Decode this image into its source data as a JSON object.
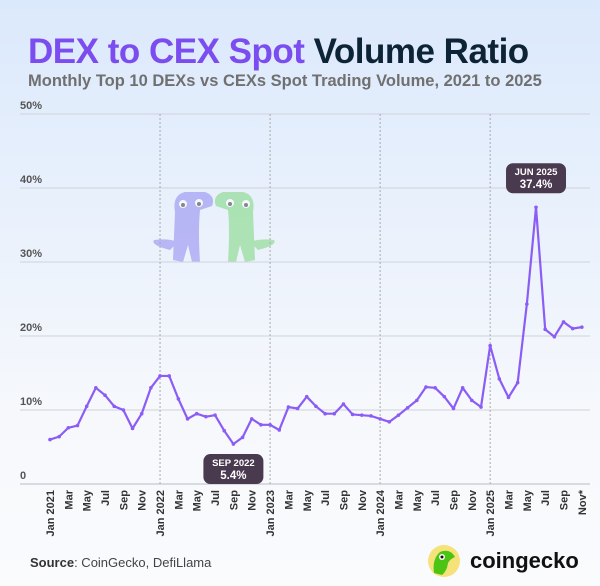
{
  "title_part1": "DEX to CEX Spot",
  "title_part2": "Volume Ratio",
  "subtitle": "Monthly Top 10 DEXs vs CEXs Spot Trading Volume, 2021 to 2025",
  "source_label": "Source",
  "source_text": ": CoinGecko, DefiLlama",
  "logo_text": "coingecko",
  "colors": {
    "line": "#8b5cf6",
    "accent": "#7b4df0",
    "tooltip": "#4a3a4f"
  },
  "chart_data": {
    "type": "line",
    "title": "DEX to CEX Spot Volume Ratio",
    "ylim": [
      0,
      50
    ],
    "yticks": [
      "0",
      "10%",
      "20%",
      "30%",
      "40%",
      "50%"
    ],
    "ytick_values": [
      0,
      10,
      20,
      30,
      40,
      50
    ],
    "grid": true,
    "xtick_labels": [
      "Jan 2021",
      "Mar",
      "May",
      "Jul",
      "Sep",
      "Nov",
      "Jan 2022",
      "Mar",
      "May",
      "Jul",
      "Sep",
      "Nov",
      "Jan 2023",
      "Mar",
      "May",
      "Jul",
      "Sep",
      "Nov",
      "Jan 2024",
      "Mar",
      "May",
      "Jul",
      "Sep",
      "Nov",
      "Jan 2025",
      "Mar",
      "May",
      "Jul",
      "Sep",
      "Nov*"
    ],
    "x": [
      "2021-01",
      "2021-02",
      "2021-03",
      "2021-04",
      "2021-05",
      "2021-06",
      "2021-07",
      "2021-08",
      "2021-09",
      "2021-10",
      "2021-11",
      "2021-12",
      "2022-01",
      "2022-02",
      "2022-03",
      "2022-04",
      "2022-05",
      "2022-06",
      "2022-07",
      "2022-08",
      "2022-09",
      "2022-10",
      "2022-11",
      "2022-12",
      "2023-01",
      "2023-02",
      "2023-03",
      "2023-04",
      "2023-05",
      "2023-06",
      "2023-07",
      "2023-08",
      "2023-09",
      "2023-10",
      "2023-11",
      "2023-12",
      "2024-01",
      "2024-02",
      "2024-03",
      "2024-04",
      "2024-05",
      "2024-06",
      "2024-07",
      "2024-08",
      "2024-09",
      "2024-10",
      "2024-11",
      "2024-12",
      "2025-01",
      "2025-02",
      "2025-03",
      "2025-04",
      "2025-05",
      "2025-06",
      "2025-07",
      "2025-08",
      "2025-09",
      "2025-10",
      "2025-11"
    ],
    "values": [
      6.0,
      6.4,
      7.6,
      7.9,
      10.5,
      13.0,
      12.0,
      10.5,
      10.0,
      7.5,
      9.5,
      13.0,
      14.6,
      14.6,
      11.5,
      8.8,
      9.5,
      9.1,
      9.3,
      7.2,
      5.4,
      6.3,
      8.8,
      8.0,
      8.0,
      7.3,
      10.4,
      10.2,
      11.8,
      10.5,
      9.5,
      9.5,
      10.8,
      9.4,
      9.3,
      9.2,
      8.8,
      8.4,
      9.3,
      10.3,
      11.3,
      13.1,
      13.0,
      11.8,
      10.2,
      13.0,
      11.3,
      10.4,
      18.7,
      14.2,
      11.7,
      13.7,
      24.3,
      37.4,
      20.9,
      19.9,
      21.9,
      21.0,
      21.2
    ],
    "annotations": [
      {
        "month": "2022-09",
        "label": "SEP 2022",
        "value_label": "5.4%"
      },
      {
        "month": "2025-06",
        "label": "JUN 2025",
        "value_label": "37.4%"
      }
    ]
  }
}
